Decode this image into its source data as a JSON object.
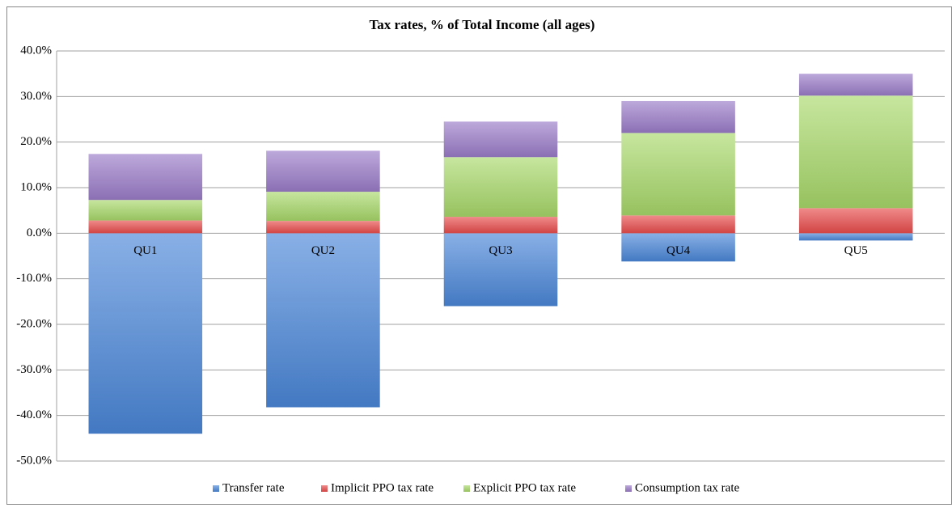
{
  "chart_data": {
    "type": "stacked_bar",
    "title": "Tax rates, % of Total Income (all ages)",
    "categories": [
      "QU1",
      "QU2",
      "QU3",
      "QU4",
      "QU5"
    ],
    "series": [
      {
        "name": "Transfer rate",
        "color": "#4a86d8",
        "values": [
          -44.0,
          -38.2,
          -16.0,
          -6.2,
          -1.6
        ]
      },
      {
        "name": "Implicit PPO tax rate",
        "color": "#e84b4b",
        "values": [
          2.8,
          2.7,
          3.6,
          3.9,
          5.5
        ]
      },
      {
        "name": "Explicit PPO tax rate",
        "color": "#a8d86a",
        "values": [
          4.5,
          6.4,
          13.1,
          18.1,
          24.7
        ]
      },
      {
        "name": "Consumption tax rate",
        "color": "#9a7bc8",
        "values": [
          10.1,
          9.0,
          7.8,
          7.0,
          4.8
        ]
      }
    ],
    "ylim": [
      -50,
      40
    ],
    "yticks": [
      {
        "value": -50,
        "label": "-50.0%"
      },
      {
        "value": -40,
        "label": "-40.0%"
      },
      {
        "value": -30,
        "label": "-30.0%"
      },
      {
        "value": -20,
        "label": "-20.0%"
      },
      {
        "value": -10,
        "label": "-10.0%"
      },
      {
        "value": 0,
        "label": "0.0%"
      },
      {
        "value": 10,
        "label": "10.0%"
      },
      {
        "value": 20,
        "label": "20.0%"
      },
      {
        "value": 30,
        "label": "30.0%"
      },
      {
        "value": 40,
        "label": "40.0%"
      }
    ],
    "grid": true,
    "legend": "bottom"
  }
}
